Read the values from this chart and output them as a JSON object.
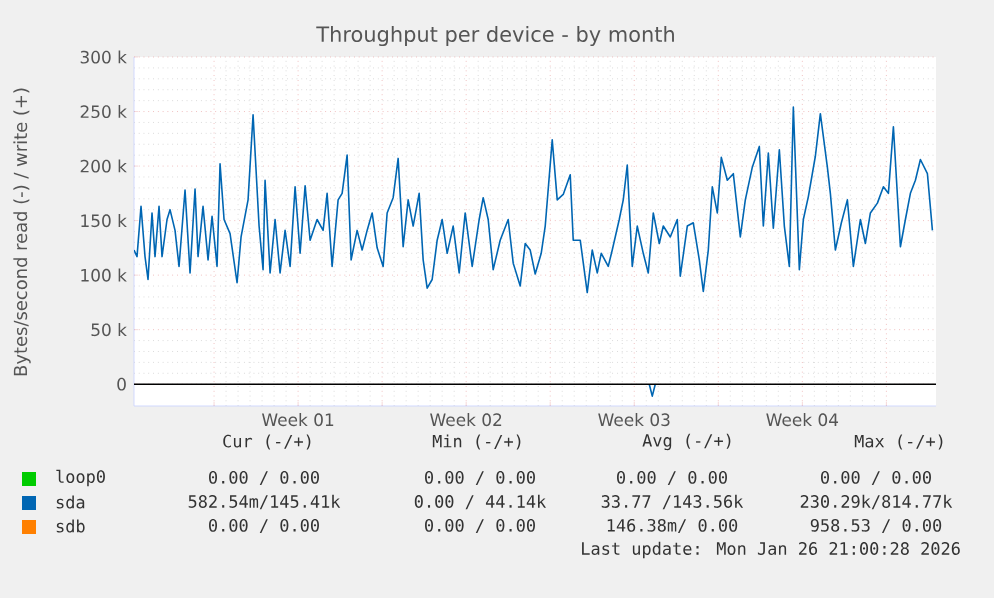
{
  "chart_data": {
    "type": "line",
    "title": "Throughput per device - by month",
    "ylabel": "Bytes/second read (-) / write (+)",
    "xlim": [
      "2025-12-24T16:00",
      "2026-01-27T01:36"
    ],
    "xticks": [
      {
        "value": "2025-12-28",
        "label": null
      },
      {
        "value": "2025-12-31T12:00",
        "label": "Week 01"
      },
      {
        "value": "2026-01-04",
        "label": null
      },
      {
        "value": "2026-01-07T12:00",
        "label": "Week 02"
      },
      {
        "value": "2026-01-11",
        "label": null
      },
      {
        "value": "2026-01-14T12:00",
        "label": "Week 03"
      },
      {
        "value": "2026-01-18",
        "label": null
      },
      {
        "value": "2026-01-21T12:00",
        "label": "Week 04"
      },
      {
        "value": "2026-01-25",
        "label": null
      }
    ],
    "ylim": [
      -20000,
      300000
    ],
    "yticks": [
      0,
      {
        "value": 50000,
        "label": "50 k"
      },
      {
        "value": 100000,
        "label": "100 k"
      },
      {
        "value": 150000,
        "label": "150 k"
      },
      {
        "value": 200000,
        "label": "200 k"
      },
      {
        "value": 250000,
        "label": "250 k"
      },
      {
        "value": 300000,
        "label": "300 k"
      }
    ],
    "grid": true,
    "legend": "bottom",
    "series": [
      {
        "name": "loop0",
        "color": "#00cc00",
        "values": [
          null
        ]
      },
      {
        "name": "sda",
        "color": "#0066b3",
        "x": [
          "2025-12-24T16:00",
          "2025-12-24T19:00",
          "2025-12-24T23:00",
          "2025-12-25T03:00",
          "2025-12-25T06:00",
          "2025-12-25T10:00",
          "2025-12-25T13:00",
          "2025-12-25T17:00",
          "2025-12-25T20:00",
          "2025-12-26T01:00",
          "2025-12-26T04:00",
          "2025-12-26T09:00",
          "2025-12-26T13:00",
          "2025-12-26T19:00",
          "2025-12-27T00:00",
          "2025-12-27T05:00",
          "2025-12-27T08:00",
          "2025-12-27T13:00",
          "2025-12-27T18:00",
          "2025-12-27T22:00",
          "2025-12-28T03:00",
          "2025-12-28T06:00",
          "2025-12-28T10:00",
          "2025-12-28T16:00",
          "2025-12-28T23:00",
          "2025-12-29T03:00",
          "2025-12-29T10:00",
          "2025-12-29T15:00",
          "2025-12-29T21:00",
          "2025-12-30T01:00",
          "2025-12-30T03:00",
          "2025-12-30T08:00",
          "2025-12-30T13:00",
          "2025-12-30T18:00",
          "2025-12-30T23:00",
          "2025-12-31T04:00",
          "2025-12-31T09:00",
          "2025-12-31T14:00",
          "2025-12-31T19:00",
          "2026-01-01T00:00",
          "2026-01-01T07:00",
          "2026-01-01T13:00",
          "2026-01-01T17:00",
          "2026-01-01T22:00",
          "2026-01-02T04:00",
          "2026-01-02T08:00",
          "2026-01-02T13:00",
          "2026-01-02T17:00",
          "2026-01-02T23:00",
          "2026-01-03T04:00",
          "2026-01-03T09:00",
          "2026-01-03T14:00",
          "2026-01-03T19:00",
          "2026-01-04T01:00",
          "2026-01-04T05:00",
          "2026-01-04T11:00",
          "2026-01-04T16:00",
          "2026-01-04T21:00",
          "2026-01-05T02:00",
          "2026-01-05T07:00",
          "2026-01-05T13:00",
          "2026-01-05T17:00",
          "2026-01-05T21:00",
          "2026-01-06T02:00",
          "2026-01-06T07:00",
          "2026-01-06T12:00",
          "2026-01-06T17:00",
          "2026-01-06T23:00",
          "2026-01-07T05:00",
          "2026-01-07T11:00",
          "2026-01-07T18:00",
          "2026-01-08T01:00",
          "2026-01-08T05:00",
          "2026-01-08T10:00",
          "2026-01-08T15:00",
          "2026-01-08T22:00",
          "2026-01-09T06:00",
          "2026-01-09T11:00",
          "2026-01-09T18:00",
          "2026-01-09T23:00",
          "2026-01-10T04:00",
          "2026-01-10T09:00",
          "2026-01-10T15:00",
          "2026-01-10T19:00",
          "2026-01-11T02:00",
          "2026-01-11T07:00",
          "2026-01-11T13:00",
          "2026-01-11T20:00",
          "2026-01-11T23:00",
          "2026-01-12T06:00",
          "2026-01-12T13:00",
          "2026-01-12T18:00",
          "2026-01-12T23:00",
          "2026-01-13T03:00",
          "2026-01-13T10:00",
          "2026-01-13T14:00",
          "2026-01-13T21:00",
          "2026-01-14T01:00",
          "2026-01-14T05:00",
          "2026-01-14T10:00",
          "2026-01-14T15:00",
          "2026-01-14T21:00",
          "2026-01-15T02:00",
          "2026-01-15T07:00",
          "2026-01-15T13:00",
          "2026-01-15T17:00",
          "2026-01-16T00:00",
          "2026-01-16T07:00",
          "2026-01-16T10:00",
          "2026-01-16T17:00",
          "2026-01-16T23:00",
          "2026-01-17T05:00",
          "2026-01-17T09:00",
          "2026-01-17T14:00",
          "2026-01-17T18:00",
          "2026-01-17T23:00",
          "2026-01-18T03:00",
          "2026-01-18T09:00",
          "2026-01-18T15:00",
          "2026-01-18T22:00",
          "2026-01-19T03:00",
          "2026-01-19T10:00",
          "2026-01-19T17:00",
          "2026-01-19T21:00",
          "2026-01-20T02:00",
          "2026-01-20T07:00",
          "2026-01-20T13:00",
          "2026-01-20T18:00",
          "2026-01-20T23:00",
          "2026-01-21T03:00",
          "2026-01-21T09:00",
          "2026-01-21T13:00",
          "2026-01-21T18:00",
          "2026-01-22T01:00",
          "2026-01-22T06:00",
          "2026-01-22T13:00",
          "2026-01-22T16:00",
          "2026-01-22T21:00",
          "2026-01-23T03:00",
          "2026-01-23T09:00",
          "2026-01-23T15:00",
          "2026-01-23T22:00",
          "2026-01-24T03:00",
          "2026-01-24T08:00",
          "2026-01-24T15:00",
          "2026-01-24T21:00",
          "2026-01-25T02:00",
          "2026-01-25T07:00",
          "2026-01-25T14:00",
          "2026-01-25T19:00",
          "2026-01-26T00:00",
          "2026-01-26T05:00",
          "2026-01-26T10:00",
          "2026-01-26T17:00",
          "2026-01-26T22:00"
        ],
        "values": [
          123000,
          117000,
          163000,
          117000,
          96000,
          157000,
          117000,
          163000,
          117000,
          151000,
          160000,
          141000,
          108000,
          178000,
          102000,
          179000,
          117000,
          163000,
          114000,
          154000,
          108000,
          202000,
          151000,
          138000,
          93000,
          135000,
          169000,
          247000,
          145000,
          105000,
          187000,
          102000,
          151000,
          102000,
          141000,
          108000,
          181000,
          120000,
          182000,
          132000,
          151000,
          141000,
          175000,
          108000,
          169000,
          175000,
          210000,
          114000,
          141000,
          123000,
          141000,
          157000,
          125000,
          108000,
          157000,
          171000,
          207000,
          126000,
          169000,
          145000,
          175000,
          114000,
          88000,
          96000,
          132000,
          151000,
          120000,
          145000,
          102000,
          157000,
          108000,
          151000,
          171000,
          151000,
          105000,
          132000,
          151000,
          111000,
          90000,
          129000,
          123000,
          101000,
          120000,
          145000,
          224000,
          169000,
          174000,
          192000,
          132000,
          132000,
          84000,
          123000,
          102000,
          120000,
          108000,
          123000,
          151000,
          169000,
          201000,
          108000,
          145000,
          120000,
          102000,
          157000,
          129000,
          145000,
          135000,
          151000,
          99000,
          145000,
          148000,
          114000,
          85000,
          123000,
          181000,
          157000,
          208000,
          187000,
          193000,
          135000,
          169000,
          199000,
          218000,
          145000,
          212000,
          143000,
          215000,
          145000,
          108000,
          254000,
          105000,
          151000,
          172000,
          209000,
          248000,
          199000,
          175000,
          123000,
          148000,
          169000,
          108000,
          151000,
          129000,
          157000,
          166000,
          181000,
          175000,
          236000,
          126000,
          151000,
          175000,
          187000,
          206000,
          193000,
          141000
        ]
      },
      {
        "color": "#0066b3",
        "x": [
          "2026-01-15T03:00",
          "2026-01-15T06:00",
          "2026-01-15T09:00"
        ],
        "values": [
          0,
          -11000,
          0
        ]
      },
      {
        "name": "sdb",
        "color": "#ff8000",
        "values": [
          null
        ]
      }
    ],
    "ref_lines": [
      {
        "axis": "y",
        "value": 0,
        "color": "#000000"
      }
    ],
    "annotations": [
      "Cur (-/+)",
      "Min (-/+)",
      "Avg (-/+)",
      "Max (-/+)",
      "0.00 /  0.00",
      "0.00 /  0.00",
      "0.00 /  0.00",
      "0.00 /  0.00",
      "582.54m/145.41k",
      "0.00 / 44.14k",
      "33.77 /143.56k",
      "230.29k/814.77k",
      "0.00 /  0.00",
      "0.00 /  0.00",
      "146.38m/  0.00",
      "958.53 /  0.00",
      "Last update: Mon Jan 26 21:00:28 2026"
    ]
  }
}
